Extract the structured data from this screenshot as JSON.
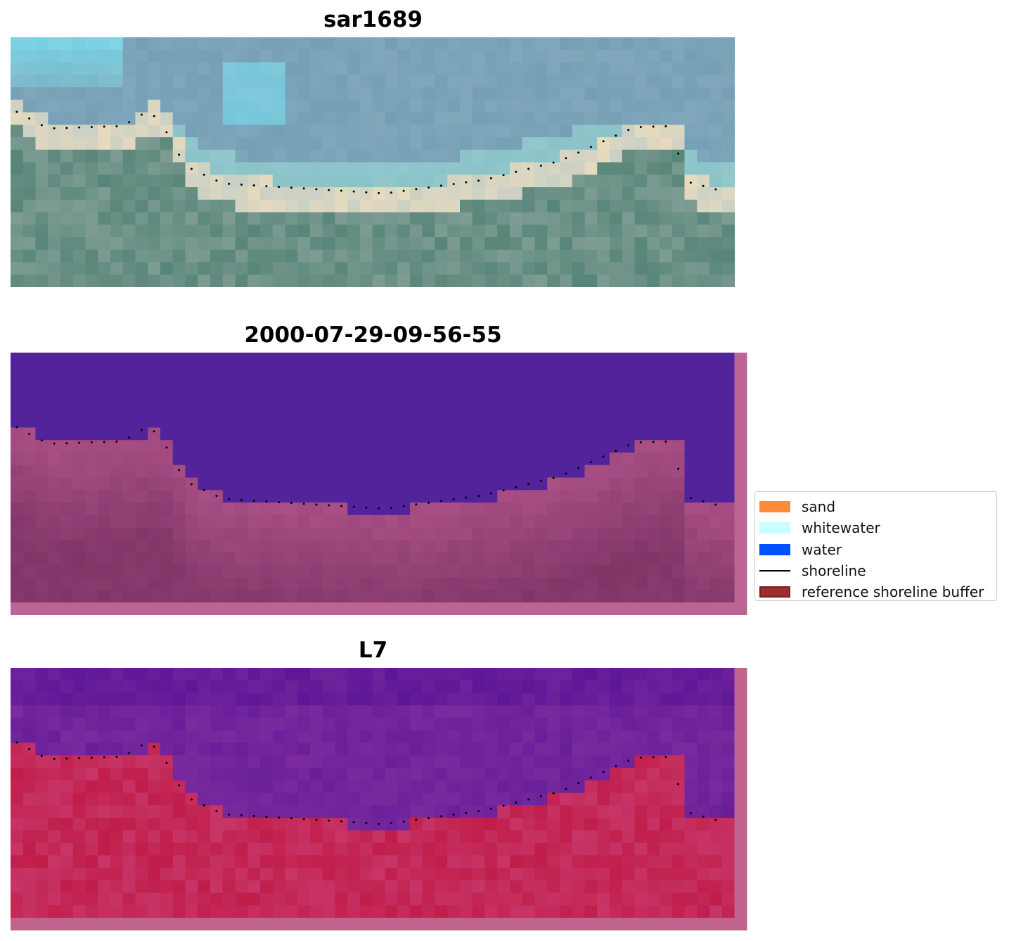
{
  "panels": [
    {
      "title": "sar1689"
    },
    {
      "title": "2000-07-29-09-56-55"
    },
    {
      "title": "L7"
    }
  ],
  "legend": {
    "items": [
      {
        "label": "sand",
        "color": "#ff8c3c",
        "kind": "patch"
      },
      {
        "label": "whitewater",
        "color": "#c8ffff",
        "kind": "patch"
      },
      {
        "label": "water",
        "color": "#0050ff",
        "kind": "patch"
      },
      {
        "label": "shoreline",
        "color": "#000000",
        "kind": "line"
      },
      {
        "label": "reference shoreline buffer",
        "color": "#9b2d2d",
        "edge": "#7a1f1f",
        "kind": "patch"
      }
    ]
  },
  "colors": {
    "rgb_water": "#7ba3b8",
    "rgb_sky_cyan": "#7de6f5",
    "rgb_land": "#5e8a7e",
    "rgb_sand": "#e8dcc0",
    "class_water": "#52239a",
    "class_land": "#7e3466",
    "class_border": "#bc6494",
    "ndwi_water": "#7a2a9e",
    "ndwi_land": "#c01e4a",
    "ndwi_border": "#c0648e"
  }
}
